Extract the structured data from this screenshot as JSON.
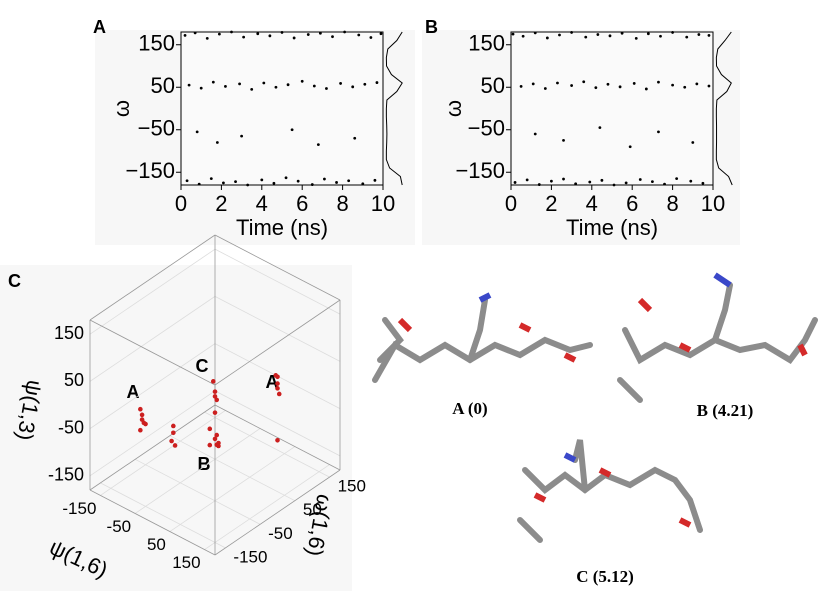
{
  "chart_data": [
    {
      "type": "scatter",
      "panel_label": "A",
      "xlabel": "Time (ns)",
      "ylabel": "ω",
      "color": "#000000",
      "xlim": [
        0,
        10
      ],
      "ylim": [
        -180,
        180
      ],
      "xticks": [
        0,
        2,
        4,
        6,
        8,
        10
      ],
      "yticks": [
        {
          "value": -150,
          "label": "−150"
        },
        {
          "value": -50,
          "label": "−50"
        },
        50,
        150
      ],
      "x": [
        0.2,
        0.7,
        1.3,
        1.9,
        2.5,
        3.1,
        3.8,
        4.4,
        5.0,
        5.6,
        6.3,
        6.9,
        7.5,
        8.1,
        8.8,
        9.4,
        9.9,
        0.4,
        1.0,
        1.6,
        2.2,
        2.9,
        3.5,
        4.1,
        4.7,
        5.3,
        6.0,
        6.6,
        7.2,
        7.9,
        8.5,
        9.1,
        9.7,
        0.3,
        0.9,
        1.5,
        2.1,
        2.7,
        3.3,
        4.0,
        4.6,
        5.2,
        5.8,
        6.5,
        7.1,
        7.7,
        8.3,
        9.0,
        9.6,
        0.8,
        1.8,
        3.0,
        5.5,
        6.8,
        8.6
      ],
      "y": [
        172,
        178,
        165,
        175,
        180,
        168,
        176,
        171,
        179,
        166,
        174,
        177,
        169,
        180,
        173,
        167,
        176,
        55,
        48,
        62,
        52,
        58,
        45,
        60,
        50,
        56,
        64,
        53,
        47,
        59,
        51,
        57,
        61,
        -170,
        -178,
        -165,
        -175,
        -172,
        -180,
        -168,
        -176,
        -163,
        -171,
        -179,
        -166,
        -174,
        -170,
        -177,
        -169,
        -55,
        -80,
        -65,
        -50,
        -85,
        -70
      ],
      "density_omega": [
        -180,
        -160,
        -140,
        -120,
        -100,
        -80,
        -60,
        -40,
        -20,
        0,
        20,
        40,
        60,
        80,
        100,
        120,
        140,
        160,
        180
      ],
      "density": [
        0.9,
        0.8,
        0.2,
        0.02,
        0.02,
        0.04,
        0.05,
        0.04,
        0.02,
        0.02,
        0.05,
        0.6,
        0.9,
        0.3,
        0.03,
        0.02,
        0.1,
        0.6,
        0.9
      ]
    },
    {
      "type": "scatter",
      "panel_label": "B",
      "xlabel": "Time (ns)",
      "ylabel": "ω",
      "color": "#000000",
      "xlim": [
        0,
        10
      ],
      "ylim": [
        -180,
        180
      ],
      "xticks": [
        0,
        2,
        4,
        6,
        8,
        10
      ],
      "yticks": [
        {
          "value": -150,
          "label": "−150"
        },
        {
          "value": -50,
          "label": "−50"
        },
        50,
        150
      ],
      "x": [
        0.1,
        0.6,
        1.2,
        1.8,
        2.4,
        3.0,
        3.7,
        4.3,
        4.9,
        5.5,
        6.2,
        6.8,
        7.4,
        8.0,
        8.7,
        9.3,
        9.8,
        0.5,
        1.1,
        1.7,
        2.3,
        3.0,
        3.6,
        4.2,
        4.8,
        5.4,
        6.1,
        6.7,
        7.3,
        8.0,
        8.6,
        9.2,
        9.8,
        0.2,
        0.8,
        1.4,
        2.0,
        2.6,
        3.2,
        3.9,
        4.5,
        5.1,
        5.7,
        6.4,
        7.0,
        7.6,
        8.2,
        8.9,
        9.5,
        1.2,
        2.6,
        4.4,
        5.9,
        7.3,
        9.0
      ],
      "y": [
        175,
        170,
        178,
        166,
        173,
        179,
        168,
        174,
        171,
        177,
        165,
        176,
        170,
        179,
        168,
        174,
        172,
        52,
        58,
        47,
        60,
        54,
        63,
        49,
        57,
        51,
        59,
        46,
        62,
        55,
        50,
        58,
        53,
        -174,
        -168,
        -179,
        -171,
        -166,
        -177,
        -173,
        -169,
        -180,
        -175,
        -167,
        -172,
        -178,
        -165,
        -171,
        -176,
        -60,
        -75,
        -45,
        -90,
        -55,
        -80
      ],
      "density_omega": [
        -180,
        -160,
        -140,
        -120,
        -100,
        -80,
        -60,
        -40,
        -20,
        0,
        20,
        40,
        60,
        80,
        100,
        120,
        140,
        160,
        180
      ],
      "density": [
        0.9,
        0.7,
        0.15,
        0.02,
        0.02,
        0.03,
        0.03,
        0.03,
        0.02,
        0.02,
        0.05,
        0.6,
        0.85,
        0.3,
        0.03,
        0.02,
        0.1,
        0.5,
        0.85
      ]
    },
    {
      "type": "scatter3d",
      "panel_label": "C",
      "xlabel": "ψ(1,6)",
      "ylabel": "ω(1,6)",
      "zlabel": "ψ(1,3)",
      "color": "#cc1f1f",
      "xlim": [
        -180,
        180
      ],
      "ylim": [
        -180,
        180
      ],
      "zlim": [
        -180,
        180
      ],
      "xticks": [
        -150,
        -50,
        50,
        150
      ],
      "yticks": [
        -150,
        -50,
        50,
        150
      ],
      "zticks": [
        -150,
        -50,
        50,
        150
      ],
      "x": [
        -60,
        -60,
        -55,
        -65,
        -60,
        -55,
        60,
        60,
        55,
        65,
        60,
        60,
        55,
        65,
        60,
        50,
        70,
        60,
        0,
        0,
        5,
        -5,
        120,
        120,
        125,
        115,
        120,
        120
      ],
      "y": [
        -150,
        -150,
        -145,
        -150,
        -155,
        -150,
        -60,
        -55,
        -60,
        -65,
        -60,
        -60,
        -70,
        -60,
        -50,
        -65,
        -60,
        -55,
        -120,
        -125,
        -120,
        -115,
        60,
        55,
        60,
        65,
        60,
        60
      ],
      "z": [
        10,
        0,
        -10,
        20,
        -20,
        -5,
        60,
        40,
        80,
        20,
        50,
        -40,
        -50,
        -30,
        -60,
        -20,
        -45,
        -55,
        -20,
        -35,
        -45,
        -10,
        40,
        60,
        20,
        50,
        30,
        -80
      ],
      "annotations": [
        "A",
        "C",
        "B",
        "A"
      ],
      "structures": [
        "A (0)",
        "B (4.21)",
        "C (5.12)"
      ]
    }
  ]
}
